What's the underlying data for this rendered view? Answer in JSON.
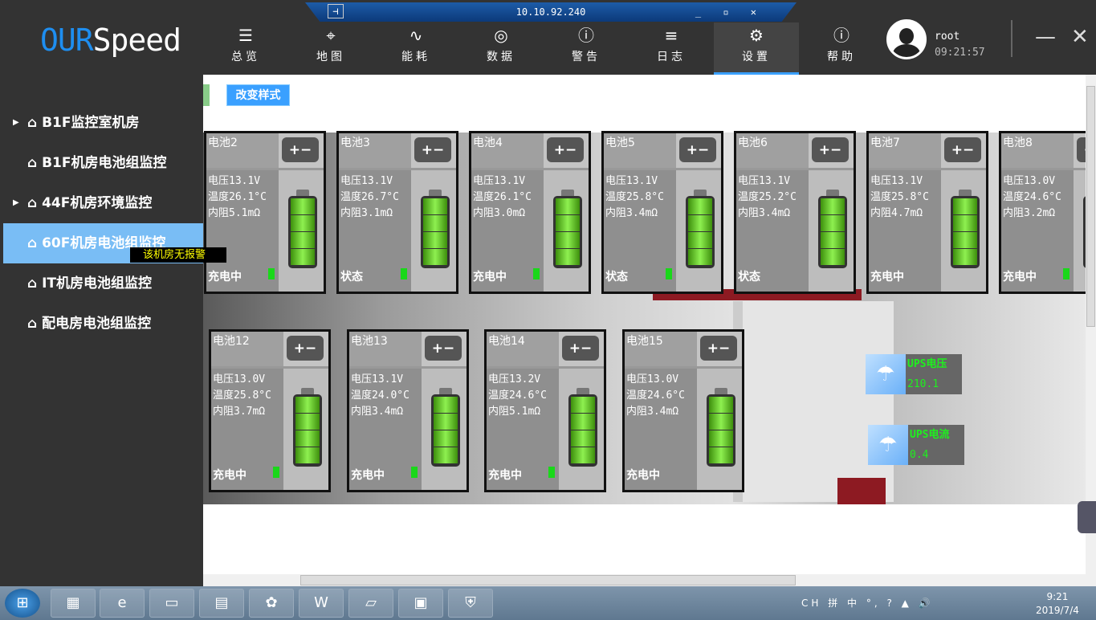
{
  "app": {
    "logo_a": "OUR",
    "logo_b": "Speed"
  },
  "remote": {
    "address": "10.10.92.240",
    "pin": "⊣",
    "controls": "_ ▫ ✕"
  },
  "nav": [
    {
      "label": "总览",
      "icon": "☰",
      "name": "list-icon"
    },
    {
      "label": "地图",
      "icon": "⌖",
      "name": "map-icon"
    },
    {
      "label": "能耗",
      "icon": "∿",
      "name": "wave-icon"
    },
    {
      "label": "数据",
      "icon": "◎",
      "name": "gauge-icon"
    },
    {
      "label": "警告",
      "icon": "ⓘ",
      "name": "alert-icon"
    },
    {
      "label": "日志",
      "icon": "≡",
      "name": "log-icon"
    },
    {
      "label": "设置",
      "icon": "⚙",
      "name": "settings-icon",
      "active": true
    },
    {
      "label": "帮助",
      "icon": "ⓘ",
      "name": "info-icon"
    }
  ],
  "user": {
    "name": "root",
    "time": "09:21:57"
  },
  "window": {
    "minimize": "—",
    "close": "✕"
  },
  "sidebar": [
    {
      "label": "B1F监控室机房",
      "arrow": true
    },
    {
      "label": "B1F机房电池组监控"
    },
    {
      "label": "44F机房环境监控",
      "arrow": true
    },
    {
      "label": "60F机房电池组监控",
      "active": true
    },
    {
      "label": "IT机房电池组监控"
    },
    {
      "label": "配电房电池组监控"
    }
  ],
  "tooltip": "该机房无报警",
  "toolbar": {
    "style_button": "改变样式"
  },
  "batteries": [
    {
      "name": "电池2",
      "voltage": "电压13.1V",
      "temp": "温度26.1°C",
      "resistance": "内阻5.1mΩ",
      "status": "充电中",
      "indicator": true,
      "level": 1.0
    },
    {
      "name": "电池3",
      "voltage": "电压13.1V",
      "temp": "温度26.7°C",
      "resistance": "内阻3.1mΩ",
      "status": "状态",
      "indicator": true,
      "level": 1.0
    },
    {
      "name": "电池4",
      "voltage": "电压13.1V",
      "temp": "温度26.1°C",
      "resistance": "内阻3.0mΩ",
      "status": "充电中",
      "indicator": true,
      "level": 1.0
    },
    {
      "name": "电池5",
      "voltage": "电压13.1V",
      "temp": "温度25.8°C",
      "resistance": "内阻3.4mΩ",
      "status": "状态",
      "indicator": true,
      "level": 1.0
    },
    {
      "name": "电池6",
      "voltage": "电压13.1V",
      "temp": "温度25.2°C",
      "resistance": "内阻3.4mΩ",
      "status": "状态",
      "indicator": false,
      "level": 1.0
    },
    {
      "name": "电池7",
      "voltage": "电压13.1V",
      "temp": "温度25.8°C",
      "resistance": "内阻4.7mΩ",
      "status": "充电中",
      "indicator": false,
      "level": 1.0
    },
    {
      "name": "电池8",
      "voltage": "电压13.0V",
      "temp": "温度24.6°C",
      "resistance": "内阻3.2mΩ",
      "status": "充电中",
      "indicator": true,
      "level": 1.0
    },
    {
      "name": "电池12",
      "voltage": "电压13.0V",
      "temp": "温度25.8°C",
      "resistance": "内阻3.7mΩ",
      "status": "充电中",
      "indicator": true,
      "level": 1.0
    },
    {
      "name": "电池13",
      "voltage": "电压13.1V",
      "temp": "温度24.0°C",
      "resistance": "内阻3.4mΩ",
      "status": "充电中",
      "indicator": true,
      "level": 1.0
    },
    {
      "name": "电池14",
      "voltage": "电压13.2V",
      "temp": "温度24.6°C",
      "resistance": "内阻5.1mΩ",
      "status": "充电中",
      "indicator": true,
      "level": 1.0
    },
    {
      "name": "电池15",
      "voltage": "电压13.0V",
      "temp": "温度24.6°C",
      "resistance": "内阻3.4mΩ",
      "status": "充电中",
      "indicator": false,
      "level": 1.0
    }
  ],
  "terminal_icon": "+−",
  "ups": [
    {
      "label": "UPS电压",
      "value": "210.1"
    },
    {
      "label": "UPS电流",
      "value": "0.4"
    }
  ],
  "colors": {
    "accent": "#3aa0ff",
    "ups_text": "#1ef01e",
    "indicator": "#1ad81a"
  },
  "taskbar": {
    "tray": "CH 拼 中 °, ? ▲ 🔊",
    "time": "9:21",
    "date": "2019/7/4"
  }
}
